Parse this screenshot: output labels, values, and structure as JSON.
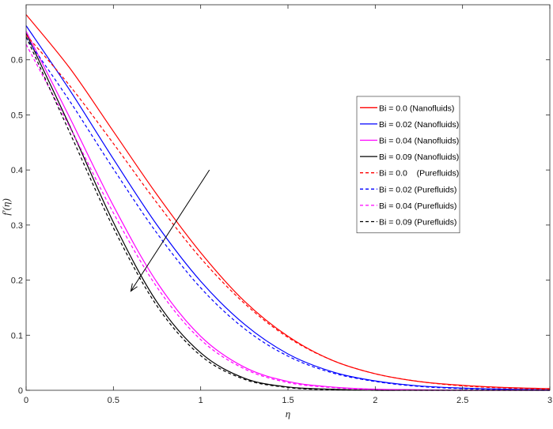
{
  "chart_data": {
    "type": "line",
    "xlabel": "η",
    "ylabel": "f′(η)",
    "xlim": [
      0,
      3
    ],
    "ylim": [
      0,
      0.7
    ],
    "xticks": [
      "0",
      "0.5",
      "1",
      "1.5",
      "2",
      "2.5",
      "3"
    ],
    "yticks": [
      "0",
      "0.1",
      "0.2",
      "0.3",
      "0.4",
      "0.5",
      "0.6"
    ],
    "grid": false,
    "legend_position": "right",
    "x": [
      0,
      0.25,
      0.5,
      0.75,
      1.0,
      1.25,
      1.5,
      1.75,
      2.0,
      2.25,
      2.5,
      2.75,
      3.0
    ],
    "series": [
      {
        "name": "Bi = 0.0 (Nanofluids)",
        "color": "#ff0000",
        "dash": "solid",
        "values": [
          0.682,
          0.585,
          0.47,
          0.355,
          0.25,
          0.162,
          0.098,
          0.055,
          0.03,
          0.016,
          0.009,
          0.005,
          0.003
        ]
      },
      {
        "name": "Bi = 0.02 (Nanofluids)",
        "color": "#0000ff",
        "dash": "solid",
        "values": [
          0.662,
          0.545,
          0.42,
          0.3,
          0.198,
          0.12,
          0.066,
          0.034,
          0.017,
          0.008,
          0.004,
          0.002,
          0.001
        ]
      },
      {
        "name": "Bi = 0.04 (Nanofluids)",
        "color": "#ff00ff",
        "dash": "solid",
        "values": [
          0.652,
          0.495,
          0.335,
          0.196,
          0.098,
          0.042,
          0.016,
          0.006,
          0.002,
          0.001,
          0.0,
          0.0,
          0.0
        ]
      },
      {
        "name": "Bi = 0.09 (Nanofluids)",
        "color": "#000000",
        "dash": "solid",
        "values": [
          0.648,
          0.48,
          0.305,
          0.16,
          0.068,
          0.022,
          0.006,
          0.002,
          0.0,
          0.0,
          0.0,
          0.0,
          0.0
        ]
      },
      {
        "name": "Bi = 0.0    (Purefluids)",
        "color": "#ff0000",
        "dash": "dashed",
        "values": [
          0.645,
          0.553,
          0.448,
          0.34,
          0.24,
          0.158,
          0.096,
          0.055,
          0.03,
          0.016,
          0.008,
          0.004,
          0.002
        ]
      },
      {
        "name": "Bi = 0.02 (Purefluids)",
        "color": "#0000ff",
        "dash": "dashed",
        "values": [
          0.64,
          0.525,
          0.402,
          0.285,
          0.186,
          0.112,
          0.062,
          0.032,
          0.016,
          0.007,
          0.003,
          0.001,
          0.0
        ]
      },
      {
        "name": "Bi = 0.04 (Purefluids)",
        "color": "#ff00ff",
        "dash": "dashed",
        "values": [
          0.628,
          0.478,
          0.322,
          0.187,
          0.092,
          0.039,
          0.014,
          0.005,
          0.001,
          0.0,
          0.0,
          0.0,
          0.0
        ]
      },
      {
        "name": "Bi = 0.09 (Purefluids)",
        "color": "#000000",
        "dash": "dashed",
        "values": [
          0.642,
          0.468,
          0.295,
          0.153,
          0.063,
          0.02,
          0.005,
          0.001,
          0.0,
          0.0,
          0.0,
          0.0,
          0.0
        ]
      }
    ],
    "annotation": {
      "type": "arrow",
      "from": [
        1.05,
        0.4
      ],
      "to": [
        0.6,
        0.18
      ]
    }
  }
}
